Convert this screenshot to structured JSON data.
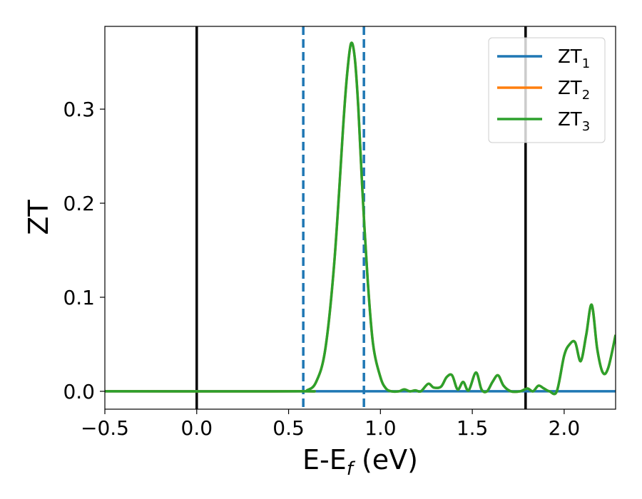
{
  "chart_data": {
    "type": "line",
    "title": "",
    "xlabel_main": "E-E",
    "xlabel_sub": "f",
    "xlabel_unit": " (eV)",
    "ylabel": "ZT",
    "xlim": [
      -0.5,
      2.28
    ],
    "ylim": [
      -0.019,
      0.388
    ],
    "xticks": [
      -0.5,
      0.0,
      0.5,
      1.0,
      1.5,
      2.0
    ],
    "xtick_labels": [
      "−0.5",
      "0.0",
      "0.5",
      "1.0",
      "1.5",
      "2.0"
    ],
    "yticks": [
      0.0,
      0.1,
      0.2,
      0.3
    ],
    "ytick_labels": [
      "0.0",
      "0.1",
      "0.2",
      "0.3"
    ],
    "grid": false,
    "legend_position": "top-right",
    "vlines_solid": [
      0.0,
      1.79
    ],
    "vlines_dashed": [
      0.58,
      0.91
    ],
    "series": [
      {
        "name_main": "ZT",
        "name_sub": "1",
        "color": "#1f77b4",
        "x": [
          -0.5,
          2.28
        ],
        "y": [
          0.0,
          0.0
        ]
      },
      {
        "name_main": "ZT",
        "name_sub": "2",
        "color": "#ff7f0e",
        "x": [
          -0.5,
          0.55,
          0.6,
          0.65,
          0.7,
          0.75,
          0.8,
          0.82,
          0.84,
          0.86,
          0.88,
          0.9,
          0.93,
          0.96,
          1.0,
          1.03,
          1.06,
          1.1,
          1.13,
          1.16,
          1.19,
          1.22,
          1.26,
          1.29,
          1.33,
          1.36,
          1.39,
          1.42,
          1.45,
          1.48,
          1.52,
          1.55,
          1.58,
          1.61,
          1.64,
          1.67,
          1.71,
          1.76,
          1.8,
          1.83,
          1.86,
          1.89,
          1.92,
          1.96,
          2.0,
          2.03,
          2.06,
          2.09,
          2.12,
          2.15,
          2.18,
          2.21,
          2.24,
          2.28
        ],
        "y": [
          0.0,
          0.0,
          0.001,
          0.01,
          0.045,
          0.14,
          0.29,
          0.34,
          0.37,
          0.355,
          0.3,
          0.22,
          0.12,
          0.05,
          0.015,
          0.003,
          0.0,
          0.0,
          0.002,
          0.0,
          0.001,
          0.0,
          0.008,
          0.004,
          0.005,
          0.015,
          0.017,
          0.002,
          0.01,
          0.001,
          0.02,
          0.002,
          0.0,
          0.01,
          0.017,
          0.006,
          0.0,
          0.0,
          0.003,
          0.0,
          0.006,
          0.003,
          0.0,
          0.0,
          0.038,
          0.05,
          0.052,
          0.032,
          0.06,
          0.092,
          0.045,
          0.02,
          0.025,
          0.06
        ]
      },
      {
        "name_main": "ZT",
        "name_sub": "3",
        "color": "#2ca02c",
        "x": [
          -0.5,
          0.55,
          0.6,
          0.65,
          0.7,
          0.75,
          0.8,
          0.82,
          0.84,
          0.86,
          0.88,
          0.9,
          0.93,
          0.96,
          1.0,
          1.03,
          1.06,
          1.1,
          1.13,
          1.16,
          1.19,
          1.22,
          1.26,
          1.29,
          1.33,
          1.36,
          1.39,
          1.42,
          1.45,
          1.48,
          1.52,
          1.55,
          1.58,
          1.61,
          1.64,
          1.67,
          1.71,
          1.76,
          1.8,
          1.83,
          1.86,
          1.89,
          1.92,
          1.96,
          2.0,
          2.03,
          2.06,
          2.09,
          2.12,
          2.15,
          2.18,
          2.21,
          2.24,
          2.28
        ],
        "y": [
          0.0,
          0.0,
          0.001,
          0.01,
          0.045,
          0.14,
          0.29,
          0.34,
          0.37,
          0.355,
          0.3,
          0.22,
          0.12,
          0.05,
          0.015,
          0.003,
          0.0,
          0.0,
          0.002,
          0.0,
          0.001,
          0.0,
          0.008,
          0.004,
          0.005,
          0.015,
          0.017,
          0.002,
          0.01,
          0.001,
          0.02,
          0.002,
          0.0,
          0.01,
          0.017,
          0.006,
          0.0,
          0.0,
          0.003,
          0.0,
          0.006,
          0.003,
          0.0,
          0.0,
          0.038,
          0.05,
          0.052,
          0.032,
          0.06,
          0.092,
          0.045,
          0.02,
          0.025,
          0.06
        ]
      }
    ]
  }
}
